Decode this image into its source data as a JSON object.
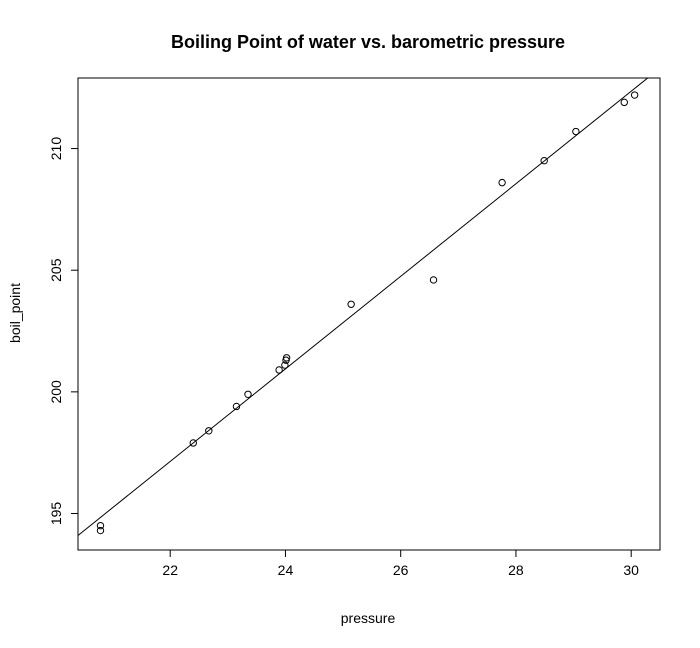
{
  "chart_data": {
    "type": "scatter",
    "title": "Boiling Point of water vs. barometric pressure",
    "xlabel": "pressure",
    "ylabel": "boil_point",
    "xlim": [
      20.4,
      30.5
    ],
    "ylim": [
      193.5,
      212.9
    ],
    "xticks": [
      22,
      24,
      26,
      28,
      30
    ],
    "yticks": [
      195,
      200,
      205,
      210
    ],
    "grid": false,
    "legend": "none",
    "points": [
      {
        "x": 20.79,
        "y": 194.5
      },
      {
        "x": 20.79,
        "y": 194.3
      },
      {
        "x": 22.4,
        "y": 197.9
      },
      {
        "x": 22.67,
        "y": 198.4
      },
      {
        "x": 23.15,
        "y": 199.4
      },
      {
        "x": 23.35,
        "y": 199.9
      },
      {
        "x": 23.89,
        "y": 200.9
      },
      {
        "x": 23.99,
        "y": 201.1
      },
      {
        "x": 24.02,
        "y": 201.4
      },
      {
        "x": 24.01,
        "y": 201.3
      },
      {
        "x": 25.14,
        "y": 203.6
      },
      {
        "x": 26.57,
        "y": 204.6
      },
      {
        "x": 27.76,
        "y": 208.6
      },
      {
        "x": 28.49,
        "y": 209.5
      },
      {
        "x": 29.04,
        "y": 210.7
      },
      {
        "x": 29.88,
        "y": 211.9
      },
      {
        "x": 30.06,
        "y": 212.2
      }
    ],
    "fit_line": {
      "intercept": 155.296,
      "slope": 1.902
    },
    "colors": {
      "points": "#000000",
      "line": "#000000",
      "background": "#ffffff"
    }
  }
}
